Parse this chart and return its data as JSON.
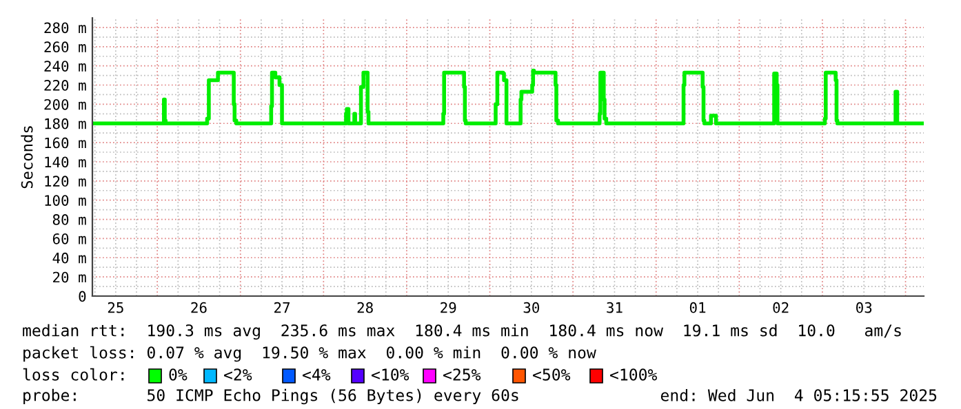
{
  "chart_data": {
    "type": "step",
    "ylabel": "Seconds",
    "x": [
      "2025-05-25T05:16",
      "2025-05-26T01:55",
      "2025-05-26T02:10",
      "2025-05-26T02:24",
      "2025-05-26T14:24",
      "2025-05-26T14:53",
      "2025-05-26T17:31",
      "2025-05-26T22:05",
      "2025-05-26T22:19",
      "2025-05-26T22:48",
      "2025-05-27T08:53",
      "2025-05-27T09:07",
      "2025-05-27T10:05",
      "2025-05-27T11:17",
      "2025-05-27T12:00",
      "2025-05-28T06:29",
      "2025-05-28T06:43",
      "2025-05-28T07:12",
      "2025-05-28T08:53",
      "2025-05-28T09:07",
      "2025-05-28T10:48",
      "2025-05-28T11:31",
      "2025-05-28T12:43",
      "2025-05-28T12:58",
      "2025-05-29T10:34",
      "2025-05-29T10:48",
      "2025-05-29T16:34",
      "2025-05-29T16:48",
      "2025-05-29T17:02",
      "2025-05-30T01:41",
      "2025-05-30T02:10",
      "2025-05-30T03:50",
      "2025-05-30T04:05",
      "2025-05-30T04:48",
      "2025-05-30T08:53",
      "2025-05-30T09:07",
      "2025-05-30T12:14",
      "2025-05-30T12:29",
      "2025-05-30T12:43",
      "2025-05-30T13:26",
      "2025-05-30T18:58",
      "2025-05-30T19:12",
      "2025-05-30T19:41",
      "2025-05-31T07:41",
      "2025-05-31T07:55",
      "2025-05-31T08:53",
      "2025-05-31T09:07",
      "2025-05-31T09:36",
      "2025-06-01T07:55",
      "2025-06-01T08:10",
      "2025-06-01T13:26",
      "2025-06-01T13:41",
      "2025-06-01T13:55",
      "2025-06-01T15:50",
      "2025-06-01T17:17",
      "2025-06-02T10:05",
      "2025-06-02T10:48",
      "2025-06-02T11:02",
      "2025-06-03T00:43",
      "2025-06-03T00:58",
      "2025-06-03T03:50",
      "2025-06-03T04:05",
      "2025-06-03T04:19",
      "2025-06-03T21:07",
      "2025-06-03T21:36",
      "2025-06-04T05:16"
    ],
    "series": [
      {
        "color": "#00ee00",
        "values": [
          180,
          205,
          183,
          180,
          185,
          225,
          233,
          200,
          183,
          180,
          198,
          233,
          228,
          220,
          180,
          190,
          195,
          180,
          190,
          180,
          218,
          233,
          192,
          180,
          190,
          233,
          218,
          183,
          180,
          200,
          233,
          232,
          225,
          180,
          205,
          213,
          220,
          235,
          233,
          233,
          220,
          183,
          180,
          190,
          233,
          205,
          185,
          180,
          220,
          233,
          218,
          183,
          180,
          188,
          180,
          232,
          220,
          180,
          185,
          233,
          225,
          183,
          180,
          213,
          180,
          180
        ]
      }
    ],
    "xlim": [
      "2025-05-25T05:16",
      "2025-06-04T05:16"
    ],
    "xticks": [
      {
        "value": "2025-05-25T12:00",
        "label": "25"
      },
      {
        "value": "2025-05-26T12:00",
        "label": "26"
      },
      {
        "value": "2025-05-27T12:00",
        "label": "27"
      },
      {
        "value": "2025-05-28T12:00",
        "label": "28"
      },
      {
        "value": "2025-05-29T12:00",
        "label": "29"
      },
      {
        "value": "2025-05-30T12:00",
        "label": "30"
      },
      {
        "value": "2025-05-31T12:00",
        "label": "31"
      },
      {
        "value": "2025-06-01T12:00",
        "label": "01"
      },
      {
        "value": "2025-06-02T12:00",
        "label": "02"
      },
      {
        "value": "2025-06-03T12:00",
        "label": "03"
      }
    ],
    "ylim": [
      0,
      290
    ],
    "yticks": [
      0,
      {
        "value": 20,
        "label": "20 m"
      },
      {
        "value": 40,
        "label": "40 m"
      },
      {
        "value": 60,
        "label": "60 m"
      },
      {
        "value": 80,
        "label": "80 m"
      },
      {
        "value": 100,
        "label": "100 m"
      },
      {
        "value": 120,
        "label": "120 m"
      },
      {
        "value": 140,
        "label": "140 m"
      },
      {
        "value": 160,
        "label": "160 m"
      },
      {
        "value": 180,
        "label": "180 m"
      },
      {
        "value": 200,
        "label": "200 m"
      },
      {
        "value": 220,
        "label": "220 m"
      },
      {
        "value": 240,
        "label": "240 m"
      },
      {
        "value": 260,
        "label": "260 m"
      },
      {
        "value": 280,
        "label": "280 m"
      }
    ],
    "grid": true,
    "annotations": [
      "median rtt:  190.3 ms avg  235.6 ms max  180.4 ms min  180.4 ms now  19.1 ms sd  10.0   am/s",
      "packet loss: 0.07 % avg  19.50 % max  0.00 % min  0.00 % now",
      "loss color:",
      "0%",
      "<2%",
      "<4%",
      "<10%",
      "<25%",
      "<50%",
      "<100%",
      "probe:       50 ICMP Echo Pings (56 Bytes) every 60s",
      "end: Wed Jun  4 05:15:55 2025"
    ]
  }
}
